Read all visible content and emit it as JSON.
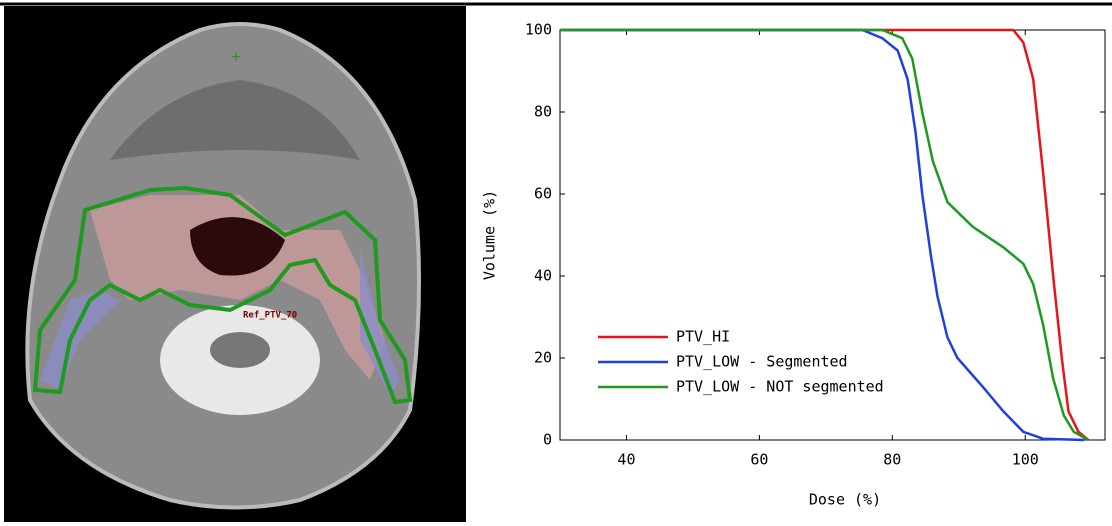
{
  "image_label": "Ref_PTV_70",
  "chart_data": {
    "type": "line",
    "xlabel": "Dose (%)",
    "ylabel": "Volume (%)",
    "xlim": [
      30,
      112
    ],
    "ylim": [
      0,
      100
    ],
    "xticks": [
      40,
      60,
      80,
      100
    ],
    "yticks": [
      0,
      20,
      40,
      60,
      80,
      100
    ],
    "legend": "lower left",
    "series": [
      {
        "name": "PTV_HI",
        "color": "#e8141c",
        "x": [
          30,
          98.2,
          99.7,
          101.2,
          102.7,
          104.2,
          105.5,
          106.5,
          108,
          109.5
        ],
        "values": [
          100,
          100,
          97,
          88,
          65,
          40,
          20,
          7,
          2,
          0
        ]
      },
      {
        "name": "PTV_LOW - Segmented",
        "color": "#1f3fe0",
        "x": [
          30,
          75.5,
          78.5,
          80.8,
          82.3,
          83.5,
          84.5,
          85.8,
          86.8,
          88.3,
          89.8,
          93.6,
          96.7,
          99.7,
          102.7,
          108.8
        ],
        "values": [
          100,
          100,
          98,
          95,
          88,
          75,
          60,
          45,
          35,
          25,
          20,
          13,
          7,
          2,
          0.3,
          0
        ]
      },
      {
        "name": "PTV_LOW - NOT segmented",
        "color": "#1e9a1e",
        "x": [
          30,
          78.5,
          81.5,
          83,
          84.5,
          86.1,
          88.3,
          92.1,
          96.7,
          99.7,
          101.2,
          102.7,
          104.2,
          105.8,
          107.3,
          109.5
        ],
        "values": [
          100,
          100,
          98,
          93,
          80,
          68,
          58,
          52,
          47,
          43,
          38,
          28,
          15,
          6,
          2,
          0
        ]
      }
    ]
  }
}
